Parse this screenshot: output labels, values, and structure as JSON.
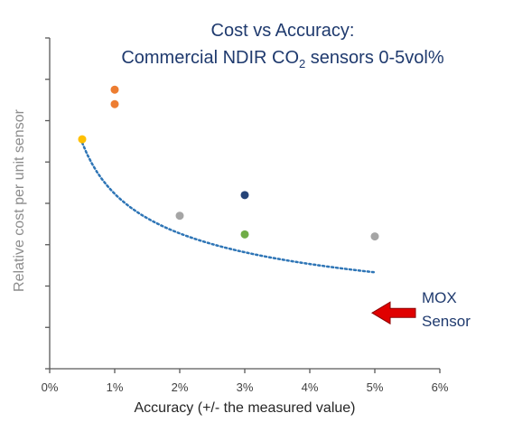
{
  "chart_data": {
    "type": "scatter",
    "title_line1": "Cost vs Accuracy:",
    "title_line2_prefix": "Commercial NDIR CO",
    "title_line2_sub": "2",
    "title_line2_suffix": " sensors 0-5vol%",
    "xlabel": "Accuracy (+/- the measured value)",
    "ylabel": "Relative cost per unit sensor",
    "xlim": [
      0,
      6
    ],
    "ylim": [
      0,
      8
    ],
    "x_ticks": [
      0,
      1,
      2,
      3,
      4,
      5,
      6
    ],
    "x_tick_labels": [
      "0%",
      "1%",
      "2%",
      "3%",
      "4%",
      "5%",
      "6%"
    ],
    "y_ticks": [
      0,
      1,
      2,
      3,
      4,
      5,
      6,
      7,
      8
    ],
    "grid": false,
    "points": [
      {
        "x": 0.5,
        "y": 5.55,
        "color": "#ffc000"
      },
      {
        "x": 1.0,
        "y": 6.75,
        "color": "#ed7d31"
      },
      {
        "x": 1.0,
        "y": 6.4,
        "color": "#ed7d31"
      },
      {
        "x": 2.0,
        "y": 3.7,
        "color": "#a5a5a5"
      },
      {
        "x": 3.0,
        "y": 4.2,
        "color": "#264478"
      },
      {
        "x": 3.0,
        "y": 3.25,
        "color": "#70ad47"
      },
      {
        "x": 5.0,
        "y": 3.2,
        "color": "#a5a5a5"
      }
    ],
    "trendline": {
      "type": "power",
      "coef": 4.23,
      "exponent": -0.37,
      "x_start": 0.5,
      "x_end": 5.0,
      "color": "#2e75b6"
    },
    "annotation": {
      "line1": "MOX",
      "line2": "Sensor",
      "x": 5.0,
      "y": 1.35,
      "arrow_color": "#e00000"
    },
    "colors": {
      "title": "#1f3a6e",
      "axis": "#595959",
      "tick_label": "#404040",
      "xlabel": "#262626",
      "ylabel": "#8c8c8c"
    }
  }
}
